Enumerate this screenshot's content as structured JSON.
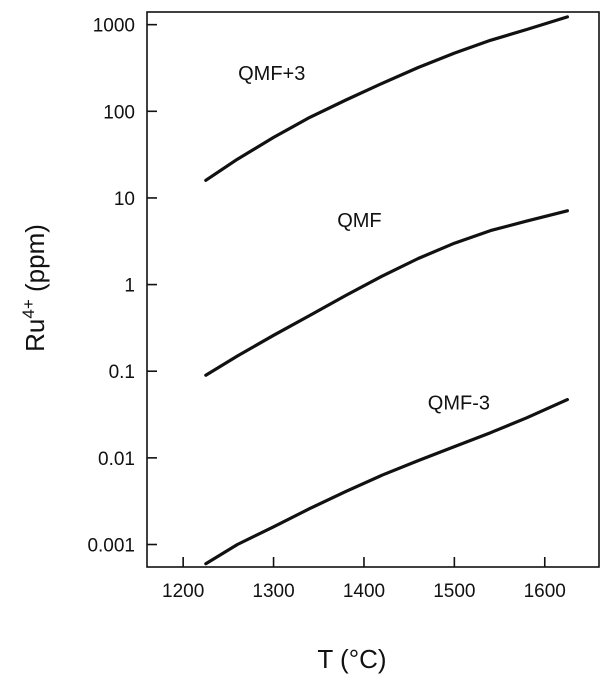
{
  "chart_data": {
    "type": "line",
    "title": "",
    "xlabel": "T (°C)",
    "ylabel_base": "Ru",
    "ylabel_sup": "4+",
    "ylabel_unit": " (ppm)",
    "xlim": [
      1160,
      1660
    ],
    "ylim": [
      0.00055,
      1400
    ],
    "yscale": "log",
    "xticks": [
      1200,
      1300,
      1400,
      1500,
      1600
    ],
    "xtick_labels": [
      "1200",
      "1300",
      "1400",
      "1500",
      "1600"
    ],
    "yticks": [
      0.001,
      0.01,
      0.1,
      1,
      10,
      100,
      1000
    ],
    "ytick_labels": [
      "0.001",
      "0.01",
      "0.1",
      "1",
      "10",
      "100",
      "1000"
    ],
    "grid": false,
    "series": [
      {
        "name": "QMF+3",
        "x": [
          1225,
          1260,
          1300,
          1340,
          1380,
          1420,
          1460,
          1500,
          1540,
          1580,
          1625
        ],
        "y": [
          16,
          28,
          50,
          85,
          135,
          210,
          320,
          470,
          660,
          880,
          1230
        ]
      },
      {
        "name": "QMF",
        "x": [
          1225,
          1260,
          1300,
          1340,
          1380,
          1420,
          1460,
          1500,
          1540,
          1580,
          1625
        ],
        "y": [
          0.09,
          0.15,
          0.26,
          0.44,
          0.75,
          1.25,
          2.0,
          3.0,
          4.2,
          5.4,
          7.1
        ]
      },
      {
        "name": "QMF-3",
        "x": [
          1225,
          1260,
          1300,
          1340,
          1380,
          1420,
          1460,
          1500,
          1540,
          1580,
          1625
        ],
        "y": [
          0.0006,
          0.001,
          0.0016,
          0.0026,
          0.0041,
          0.0063,
          0.0093,
          0.0135,
          0.0195,
          0.029,
          0.047
        ]
      }
    ],
    "annotations": [
      {
        "text": "QMF+3",
        "series": 0,
        "x": 1298,
        "y": 230
      },
      {
        "text": "QMF",
        "series": 1,
        "x": 1395,
        "y": 4.6
      },
      {
        "text": "QMF-3",
        "series": 2,
        "x": 1505,
        "y": 0.036
      }
    ]
  }
}
